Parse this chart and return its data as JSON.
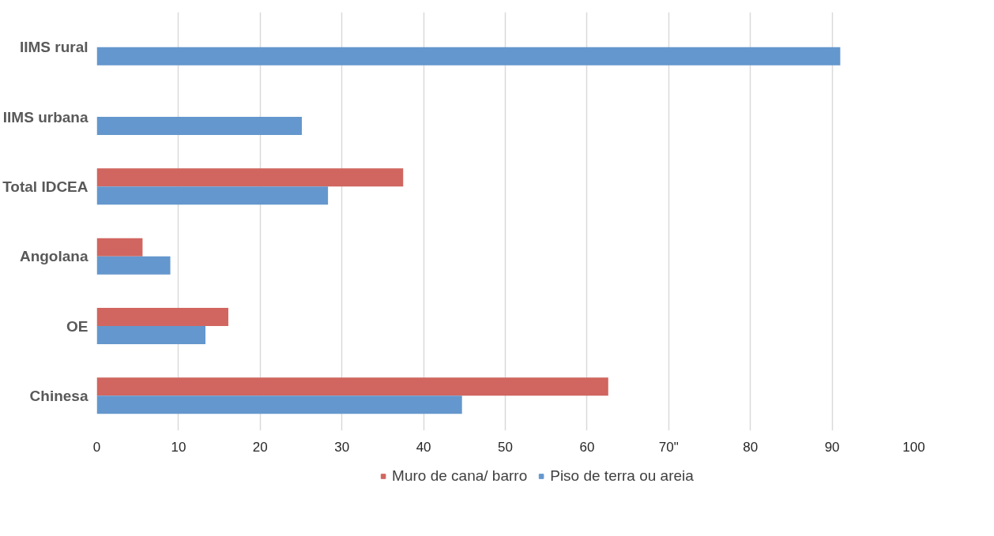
{
  "chart_data": {
    "type": "bar",
    "orientation": "horizontal",
    "categories": [
      "IIMS rural",
      "IIMS urbana",
      "Total IDCEA",
      "Angolana",
      "OE",
      "Chinesa"
    ],
    "series": [
      {
        "name": "Muro de cana/ barro",
        "color": "#d0665f",
        "values": [
          null,
          null,
          37.5,
          5.6,
          16.1,
          62.6
        ]
      },
      {
        "name": "Piso de terra ou areia",
        "color": "#6497cd",
        "values": [
          91.0,
          25.1,
          28.3,
          9.0,
          13.3,
          44.7
        ]
      }
    ],
    "xlim": [
      0,
      100
    ],
    "xticks": [
      0,
      10,
      20,
      30,
      40,
      50,
      60,
      {
        "value": 70,
        "label": "70\""
      },
      80,
      90,
      100
    ],
    "grid": "x",
    "legend": "bottom"
  }
}
